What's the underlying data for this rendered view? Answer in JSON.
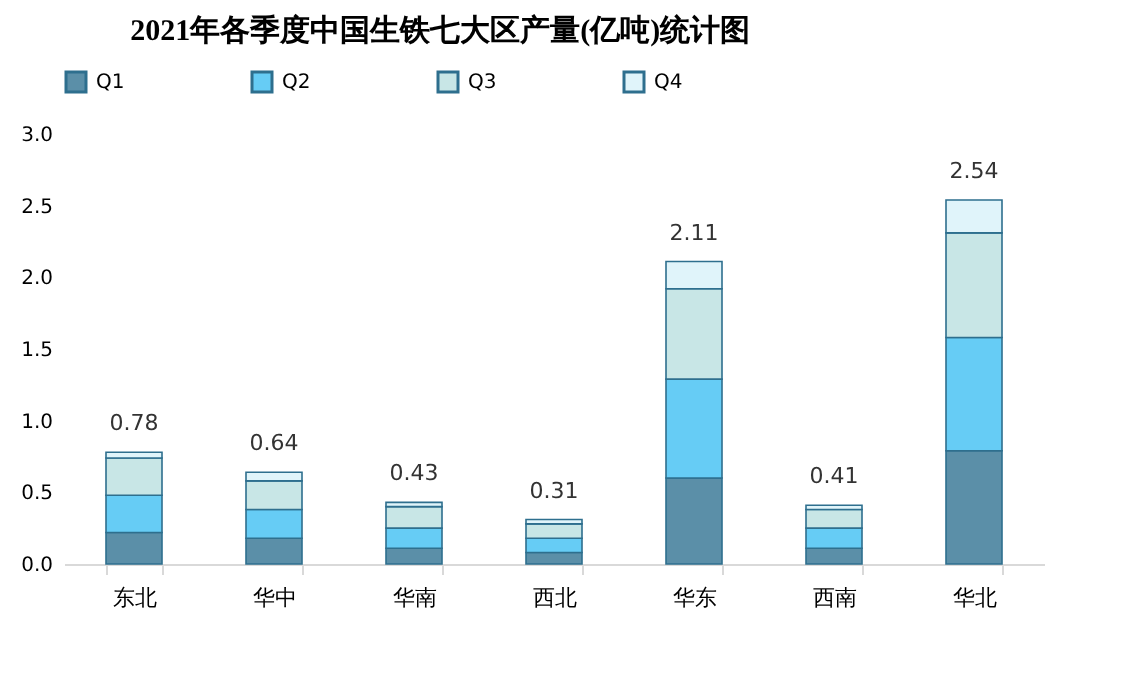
{
  "chart_data": {
    "type": "bar",
    "title": "2021年各季度中国生铁七大区产量(亿吨)统计图",
    "stacked": true,
    "categories": [
      "东北",
      "华中",
      "华南",
      "西北",
      "华东",
      "西南",
      "华北"
    ],
    "series": [
      {
        "name": "Q1",
        "color": "#5b8fa8",
        "values": [
          0.22,
          0.18,
          0.11,
          0.08,
          0.6,
          0.11,
          0.79
        ]
      },
      {
        "name": "Q2",
        "color": "#66ccf5",
        "values": [
          0.26,
          0.2,
          0.14,
          0.1,
          0.69,
          0.14,
          0.79
        ]
      },
      {
        "name": "Q3",
        "color": "#c8e6e6",
        "values": [
          0.26,
          0.2,
          0.15,
          0.1,
          0.63,
          0.13,
          0.73
        ]
      },
      {
        "name": "Q4",
        "color": "#e0f4fa",
        "values": [
          0.04,
          0.06,
          0.03,
          0.03,
          0.19,
          0.03,
          0.23
        ]
      }
    ],
    "totals": [
      "0.78",
      "0.64",
      "0.43",
      "0.31",
      "2.11",
      "0.41",
      "2.54"
    ],
    "ylim": [
      0,
      3.0
    ],
    "yticks": [
      {
        "value": 0,
        "label": "0.0"
      },
      {
        "value": 0.5,
        "label": "0.5"
      },
      {
        "value": 1,
        "label": "1.0"
      },
      {
        "value": 1.5,
        "label": "1.5"
      },
      {
        "value": 2,
        "label": "2.0"
      },
      {
        "value": 2.5,
        "label": "2.5"
      },
      {
        "value": 3,
        "label": "3.0"
      }
    ],
    "grid": false,
    "legend": "top"
  }
}
